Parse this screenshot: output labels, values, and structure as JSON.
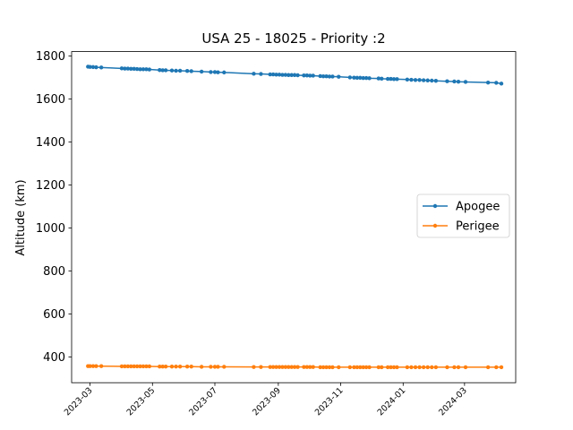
{
  "chart_data": {
    "type": "line",
    "title": "USA 25 - 18025 - Priority :2",
    "xlabel": "",
    "ylabel": "Altitude (km)",
    "x_axis_type": "date",
    "xlim": [
      "2023-02-11",
      "2024-04-20"
    ],
    "ylim": [
      280,
      1820
    ],
    "yticks": [
      400,
      600,
      800,
      1000,
      1200,
      1400,
      1600,
      1800
    ],
    "xticks": [
      "2023-03",
      "2023-05",
      "2023-07",
      "2023-09",
      "2023-11",
      "2024-01",
      "2024-03"
    ],
    "grid": false,
    "legend_position": "center-right",
    "series": [
      {
        "name": "Apogee",
        "color": "#1f77b4",
        "points": [
          [
            "2023-02-27",
            1750
          ],
          [
            "2023-03-01",
            1749
          ],
          [
            "2023-03-04",
            1748
          ],
          [
            "2023-03-07",
            1747
          ],
          [
            "2023-03-12",
            1746
          ],
          [
            "2023-04-01",
            1742
          ],
          [
            "2023-04-04",
            1741
          ],
          [
            "2023-04-07",
            1741
          ],
          [
            "2023-04-10",
            1740
          ],
          [
            "2023-04-13",
            1740
          ],
          [
            "2023-04-16",
            1739
          ],
          [
            "2023-04-19",
            1738
          ],
          [
            "2023-04-22",
            1738
          ],
          [
            "2023-04-25",
            1738
          ],
          [
            "2023-04-28",
            1737
          ],
          [
            "2023-05-08",
            1734
          ],
          [
            "2023-05-11",
            1733
          ],
          [
            "2023-05-14",
            1733
          ],
          [
            "2023-05-20",
            1732
          ],
          [
            "2023-05-24",
            1731
          ],
          [
            "2023-05-28",
            1731
          ],
          [
            "2023-06-04",
            1730
          ],
          [
            "2023-06-08",
            1729
          ],
          [
            "2023-06-18",
            1727
          ],
          [
            "2023-06-27",
            1725
          ],
          [
            "2023-07-01",
            1725
          ],
          [
            "2023-07-04",
            1724
          ],
          [
            "2023-07-10",
            1723
          ],
          [
            "2023-08-08",
            1717
          ],
          [
            "2023-08-15",
            1716
          ],
          [
            "2023-08-24",
            1714
          ],
          [
            "2023-08-27",
            1714
          ],
          [
            "2023-08-30",
            1713
          ],
          [
            "2023-09-02",
            1713
          ],
          [
            "2023-09-05",
            1712
          ],
          [
            "2023-09-08",
            1712
          ],
          [
            "2023-09-11",
            1711
          ],
          [
            "2023-09-14",
            1711
          ],
          [
            "2023-09-17",
            1711
          ],
          [
            "2023-09-20",
            1710
          ],
          [
            "2023-09-26",
            1709
          ],
          [
            "2023-09-29",
            1709
          ],
          [
            "2023-10-02",
            1708
          ],
          [
            "2023-10-05",
            1708
          ],
          [
            "2023-10-12",
            1706
          ],
          [
            "2023-10-15",
            1705
          ],
          [
            "2023-10-18",
            1705
          ],
          [
            "2023-10-21",
            1704
          ],
          [
            "2023-10-24",
            1704
          ],
          [
            "2023-10-30",
            1703
          ],
          [
            "2023-11-10",
            1700
          ],
          [
            "2023-11-14",
            1699
          ],
          [
            "2023-11-17",
            1698
          ],
          [
            "2023-11-20",
            1698
          ],
          [
            "2023-11-23",
            1697
          ],
          [
            "2023-11-26",
            1697
          ],
          [
            "2023-11-29",
            1696
          ],
          [
            "2023-12-08",
            1695
          ],
          [
            "2023-12-11",
            1694
          ],
          [
            "2023-12-17",
            1693
          ],
          [
            "2023-12-20",
            1693
          ],
          [
            "2023-12-23",
            1692
          ],
          [
            "2023-12-26",
            1692
          ],
          [
            "2024-01-05",
            1690
          ],
          [
            "2024-01-09",
            1689
          ],
          [
            "2024-01-13",
            1688
          ],
          [
            "2024-01-17",
            1688
          ],
          [
            "2024-01-21",
            1687
          ],
          [
            "2024-01-25",
            1686
          ],
          [
            "2024-01-29",
            1685
          ],
          [
            "2024-02-02",
            1684
          ],
          [
            "2024-02-13",
            1682
          ],
          [
            "2024-02-20",
            1681
          ],
          [
            "2024-02-24",
            1680
          ],
          [
            "2024-03-02",
            1679
          ],
          [
            "2024-03-24",
            1676
          ],
          [
            "2024-04-01",
            1675
          ],
          [
            "2024-04-06",
            1671
          ]
        ]
      },
      {
        "name": "Perigee",
        "color": "#ff7f0e",
        "points": [
          [
            "2023-02-27",
            357
          ],
          [
            "2023-03-01",
            357
          ],
          [
            "2023-03-04",
            357
          ],
          [
            "2023-03-07",
            357
          ],
          [
            "2023-03-12",
            357
          ],
          [
            "2023-04-01",
            356
          ],
          [
            "2023-04-04",
            356
          ],
          [
            "2023-04-07",
            356
          ],
          [
            "2023-04-10",
            356
          ],
          [
            "2023-04-13",
            356
          ],
          [
            "2023-04-16",
            356
          ],
          [
            "2023-04-19",
            356
          ],
          [
            "2023-04-22",
            356
          ],
          [
            "2023-04-25",
            356
          ],
          [
            "2023-04-28",
            356
          ],
          [
            "2023-05-08",
            355
          ],
          [
            "2023-05-11",
            355
          ],
          [
            "2023-05-14",
            355
          ],
          [
            "2023-05-20",
            355
          ],
          [
            "2023-05-24",
            355
          ],
          [
            "2023-05-28",
            355
          ],
          [
            "2023-06-04",
            355
          ],
          [
            "2023-06-08",
            355
          ],
          [
            "2023-06-18",
            354
          ],
          [
            "2023-06-27",
            354
          ],
          [
            "2023-07-01",
            354
          ],
          [
            "2023-07-04",
            354
          ],
          [
            "2023-07-10",
            354
          ],
          [
            "2023-08-08",
            353
          ],
          [
            "2023-08-15",
            353
          ],
          [
            "2023-08-24",
            353
          ],
          [
            "2023-08-27",
            353
          ],
          [
            "2023-08-30",
            353
          ],
          [
            "2023-09-02",
            353
          ],
          [
            "2023-09-05",
            353
          ],
          [
            "2023-09-08",
            353
          ],
          [
            "2023-09-11",
            353
          ],
          [
            "2023-09-14",
            353
          ],
          [
            "2023-09-17",
            353
          ],
          [
            "2023-09-20",
            353
          ],
          [
            "2023-09-26",
            353
          ],
          [
            "2023-09-29",
            353
          ],
          [
            "2023-10-02",
            353
          ],
          [
            "2023-10-05",
            353
          ],
          [
            "2023-10-12",
            352
          ],
          [
            "2023-10-15",
            352
          ],
          [
            "2023-10-18",
            352
          ],
          [
            "2023-10-21",
            352
          ],
          [
            "2023-10-24",
            352
          ],
          [
            "2023-10-30",
            352
          ],
          [
            "2023-11-10",
            352
          ],
          [
            "2023-11-14",
            352
          ],
          [
            "2023-11-17",
            352
          ],
          [
            "2023-11-20",
            352
          ],
          [
            "2023-11-23",
            352
          ],
          [
            "2023-11-26",
            352
          ],
          [
            "2023-11-29",
            352
          ],
          [
            "2023-12-08",
            352
          ],
          [
            "2023-12-11",
            352
          ],
          [
            "2023-12-17",
            352
          ],
          [
            "2023-12-20",
            352
          ],
          [
            "2023-12-23",
            352
          ],
          [
            "2023-12-26",
            352
          ],
          [
            "2024-01-05",
            352
          ],
          [
            "2024-01-09",
            352
          ],
          [
            "2024-01-13",
            352
          ],
          [
            "2024-01-17",
            352
          ],
          [
            "2024-01-21",
            352
          ],
          [
            "2024-01-25",
            352
          ],
          [
            "2024-01-29",
            352
          ],
          [
            "2024-02-02",
            352
          ],
          [
            "2024-02-13",
            352
          ],
          [
            "2024-02-20",
            352
          ],
          [
            "2024-02-24",
            352
          ],
          [
            "2024-03-02",
            352
          ],
          [
            "2024-03-24",
            352
          ],
          [
            "2024-04-01",
            352
          ],
          [
            "2024-04-06",
            352
          ]
        ]
      }
    ]
  }
}
